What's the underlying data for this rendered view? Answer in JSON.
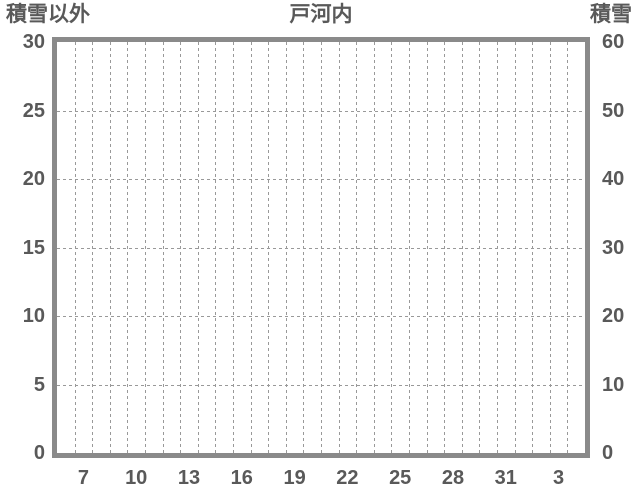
{
  "header": {
    "left_axis_label": "積雪以外",
    "title": "戸河内",
    "right_axis_label": "積雪"
  },
  "chart": {
    "left_axis": {
      "ticks": [
        "30",
        "25",
        "20",
        "15",
        "10",
        "5",
        "0"
      ]
    },
    "right_axis": {
      "ticks": [
        "60",
        "50",
        "40",
        "30",
        "20",
        "10",
        "0"
      ]
    },
    "x_axis": {
      "labels": [
        "7",
        "10",
        "13",
        "16",
        "19",
        "22",
        "25",
        "28",
        "31",
        "3"
      ],
      "label_cell_indices": [
        1,
        4,
        7,
        10,
        13,
        16,
        19,
        22,
        25,
        28
      ],
      "cell_count": 30
    },
    "colors": {
      "border": "#8a8a8a",
      "grid": "#999999",
      "text": "#595959",
      "background": "#ffffff"
    }
  },
  "chart_data": {
    "type": "line",
    "title": "戸河内",
    "x_tick_labels": [
      "7",
      "10",
      "13",
      "16",
      "19",
      "22",
      "25",
      "28",
      "31",
      "3"
    ],
    "y_axis_left": {
      "label": "積雪以外",
      "range": [
        0,
        30
      ],
      "ticks": [
        0,
        5,
        10,
        15,
        20,
        25,
        30
      ]
    },
    "y_axis_right": {
      "label": "積雪",
      "range": [
        0,
        60
      ],
      "ticks": [
        0,
        10,
        20,
        30,
        40,
        50,
        60
      ]
    },
    "grid": "dashed, vertical line per day cell, horizontal line per major tick",
    "legend": "none",
    "series": []
  }
}
